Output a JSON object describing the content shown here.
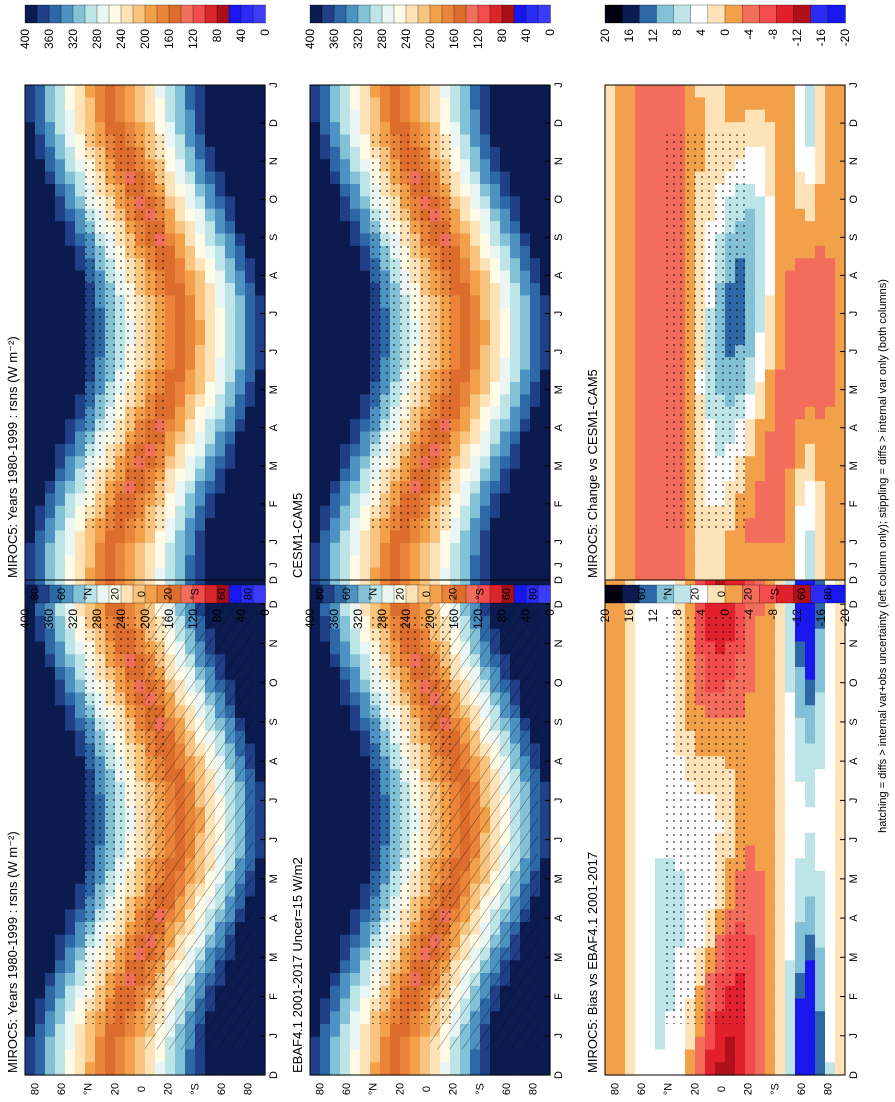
{
  "footnote": "hatching = diffs > internal var+obs uncertainty (left column only); stippling = diffs > internal var only (both columns)",
  "colors": {
    "mean_scale": [
      "#0b1b50",
      "#1f3f86",
      "#2d67a6",
      "#4e92c2",
      "#83c1d6",
      "#bde4e6",
      "#e9f6f3",
      "#fffbe6",
      "#fde3b7",
      "#f9c47f",
      "#f2a04a",
      "#e9843a",
      "#dd6d2c",
      "#ef6f5c",
      "#f34c4c",
      "#d8262a",
      "#a90f16",
      "#1818ee",
      "#2a2cf5",
      "#3b3bf8"
    ],
    "diff_scale": [
      "#000010",
      "#0b1b50",
      "#2d67a6",
      "#83c1d6",
      "#bde4e6",
      "#ffffff",
      "#fde3b7",
      "#f2a04a",
      "#f36d5c",
      "#f34c4c",
      "#e0202a",
      "#b0101a",
      "#2a2cf5",
      "#1818ee"
    ]
  },
  "months": [
    "J",
    "F",
    "M",
    "A",
    "M",
    "J",
    "J",
    "A",
    "S",
    "O",
    "N",
    "D",
    "J"
  ],
  "lat_ticks": [
    "80",
    "60",
    "°N",
    "20",
    "0",
    "20",
    "°S",
    "60",
    "80"
  ],
  "chart_data": [
    {
      "type": "heatmap",
      "title": "MIROC5: Years 1980-1999 : rsns (W m⁻²)",
      "variable": "rsns",
      "x_label_ticks": [
        "D",
        "J",
        "F",
        "M",
        "A",
        "M",
        "J",
        "J",
        "A",
        "S",
        "O",
        "N",
        "D",
        "J"
      ],
      "y_ticks": [
        "80",
        "60",
        "°N",
        "20",
        "0",
        "20",
        "°S",
        "60",
        "80"
      ],
      "colorbar_ticks": [
        "400",
        "360",
        "320",
        "280",
        "240",
        "200",
        "160",
        "120",
        "80",
        "40",
        "0"
      ],
      "range": [
        0,
        400
      ]
    },
    {
      "type": "heatmap",
      "title": "MIROC5: Years 1980-1999 : rsns (W m⁻²)",
      "variable": "rsns",
      "x_label_ticks": [
        "D",
        "J",
        "F",
        "M",
        "A",
        "M",
        "J",
        "J",
        "A",
        "S",
        "O",
        "N",
        "D",
        "J"
      ],
      "y_ticks": [
        "80",
        "60",
        "°N",
        "20",
        "0",
        "20",
        "°S",
        "60",
        "80"
      ],
      "colorbar_ticks": [
        "400",
        "360",
        "320",
        "280",
        "240",
        "200",
        "160",
        "120",
        "80",
        "40",
        "0"
      ],
      "range": [
        0,
        400
      ]
    },
    {
      "type": "heatmap",
      "title": "EBAF4.1 2001-2017 Uncer=15 W/m2",
      "x_label_ticks": [
        "D",
        "J",
        "F",
        "M",
        "A",
        "M",
        "J",
        "J",
        "A",
        "S",
        "O",
        "N",
        "D",
        "J"
      ],
      "y_ticks": [
        "80",
        "60",
        "°N",
        "20",
        "0",
        "20",
        "°S",
        "60",
        "80"
      ],
      "colorbar_ticks": [
        "400",
        "360",
        "320",
        "280",
        "240",
        "200",
        "160",
        "120",
        "80",
        "40",
        "0"
      ],
      "range": [
        0,
        400
      ]
    },
    {
      "type": "heatmap",
      "title": "CESM1-CAM5",
      "x_label_ticks": [
        "D",
        "J",
        "F",
        "M",
        "A",
        "M",
        "J",
        "J",
        "A",
        "S",
        "O",
        "N",
        "D",
        "J"
      ],
      "y_ticks": [
        "80",
        "60",
        "°N",
        "20",
        "0",
        "20",
        "°S",
        "60",
        "80"
      ],
      "colorbar_ticks": [
        "400",
        "360",
        "320",
        "280",
        "240",
        "200",
        "160",
        "120",
        "80",
        "40",
        "0"
      ],
      "range": [
        0,
        400
      ]
    },
    {
      "type": "heatmap",
      "title": "MIROC5: Bias vs EBAF4.1 2001-2017",
      "x_label_ticks": [
        "D",
        "J",
        "F",
        "M",
        "A",
        "M",
        "J",
        "J",
        "A",
        "S",
        "O",
        "N",
        "D",
        "J"
      ],
      "y_ticks": [
        "80",
        "60",
        "°N",
        "20",
        "0",
        "20",
        "°S",
        "60",
        "80"
      ],
      "colorbar_ticks": [
        "20",
        "16",
        "12",
        "8",
        "4",
        "0",
        "-4",
        "-8",
        "-12",
        "-16",
        "-20"
      ],
      "range": [
        -20,
        20
      ]
    },
    {
      "type": "heatmap",
      "title": "MIROC5: Change vs CESM1-CAM5",
      "x_label_ticks": [
        "D",
        "J",
        "F",
        "M",
        "A",
        "M",
        "J",
        "J",
        "A",
        "S",
        "O",
        "N",
        "D",
        "J"
      ],
      "y_ticks": [
        "80",
        "60",
        "°N",
        "20",
        "0",
        "20",
        "°S",
        "60",
        "80"
      ],
      "colorbar_ticks": [
        "20",
        "16",
        "12",
        "8",
        "4",
        "0",
        "-4",
        "-8",
        "-12",
        "-16",
        "-20"
      ],
      "range": [
        -20,
        20
      ]
    }
  ]
}
